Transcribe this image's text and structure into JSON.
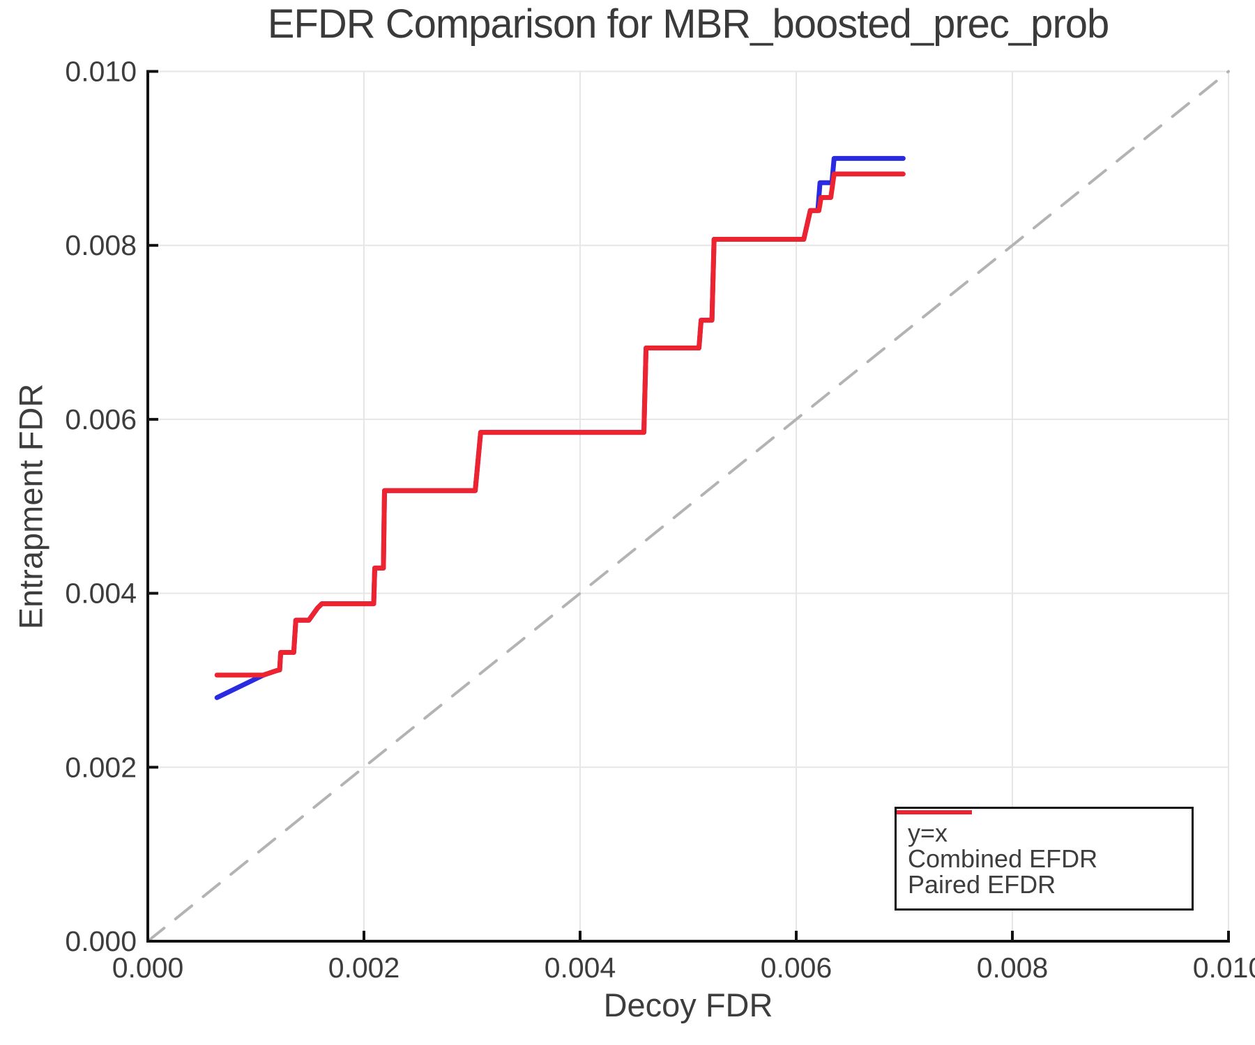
{
  "chart_data": {
    "type": "line",
    "title": "EFDR Comparison for MBR_boosted_prec_prob",
    "xlabel": "Decoy FDR",
    "ylabel": "Entrapment FDR",
    "xlim": [
      0.0,
      0.01
    ],
    "ylim": [
      0.0,
      0.01
    ],
    "grid": true,
    "legend_position": "lower right",
    "colors": {
      "background": "#ffffff",
      "grid": "#e6e6e6",
      "spine": "#111111",
      "text": "#3d3d3d",
      "identity_line": "#b3b3b3",
      "combined": "#2a2ae0",
      "paired": "#ee2330"
    },
    "x_ticks": {
      "values": [
        0.0,
        0.002,
        0.004,
        0.006,
        0.008,
        0.01
      ],
      "labels": [
        "0.000",
        "0.002",
        "0.004",
        "0.006",
        "0.008",
        "0.010"
      ]
    },
    "y_ticks": {
      "values": [
        0.0,
        0.002,
        0.004,
        0.006,
        0.008,
        0.01
      ],
      "labels": [
        "0.000",
        "0.002",
        "0.004",
        "0.006",
        "0.008",
        "0.010"
      ]
    },
    "series": [
      {
        "name": "y=x",
        "color": "#b3b3b3",
        "dash": true,
        "width": 4,
        "points": [
          [
            0.0,
            0.0
          ],
          [
            0.01,
            0.01
          ]
        ]
      },
      {
        "name": "Combined EFDR",
        "color": "#2a2ae0",
        "dash": false,
        "width": 7,
        "points": [
          [
            0.00064,
            0.0028
          ],
          [
            0.00107,
            0.00306
          ],
          [
            0.00119,
            0.00311
          ],
          [
            0.00122,
            0.00312
          ],
          [
            0.00123,
            0.00332
          ],
          [
            0.00135,
            0.00332
          ],
          [
            0.00137,
            0.00369
          ],
          [
            0.00149,
            0.00369
          ],
          [
            0.00157,
            0.00383
          ],
          [
            0.00161,
            0.00388
          ],
          [
            0.00209,
            0.00388
          ],
          [
            0.0021,
            0.00429
          ],
          [
            0.00218,
            0.00429
          ],
          [
            0.00219,
            0.00518
          ],
          [
            0.00303,
            0.00518
          ],
          [
            0.00308,
            0.00585
          ],
          [
            0.00459,
            0.00585
          ],
          [
            0.00461,
            0.00682
          ],
          [
            0.0051,
            0.00682
          ],
          [
            0.00512,
            0.00714
          ],
          [
            0.00522,
            0.00714
          ],
          [
            0.00524,
            0.00807
          ],
          [
            0.00607,
            0.00807
          ],
          [
            0.00613,
            0.0084
          ],
          [
            0.0062,
            0.0084
          ],
          [
            0.00622,
            0.00872
          ],
          [
            0.00633,
            0.00872
          ],
          [
            0.00635,
            0.009
          ],
          [
            0.00699,
            0.009
          ]
        ]
      },
      {
        "name": "Paired EFDR",
        "color": "#ee2330",
        "dash": false,
        "width": 7,
        "points": [
          [
            0.00064,
            0.00306
          ],
          [
            0.00107,
            0.00306
          ],
          [
            0.00119,
            0.00311
          ],
          [
            0.00122,
            0.00312
          ],
          [
            0.00123,
            0.00332
          ],
          [
            0.00135,
            0.00332
          ],
          [
            0.00137,
            0.00369
          ],
          [
            0.00149,
            0.00369
          ],
          [
            0.00157,
            0.00383
          ],
          [
            0.00161,
            0.00388
          ],
          [
            0.00209,
            0.00388
          ],
          [
            0.0021,
            0.00429
          ],
          [
            0.00218,
            0.00429
          ],
          [
            0.00219,
            0.00518
          ],
          [
            0.00303,
            0.00518
          ],
          [
            0.00308,
            0.00585
          ],
          [
            0.00459,
            0.00585
          ],
          [
            0.00461,
            0.00682
          ],
          [
            0.0051,
            0.00682
          ],
          [
            0.00512,
            0.00714
          ],
          [
            0.00522,
            0.00714
          ],
          [
            0.00524,
            0.00807
          ],
          [
            0.00607,
            0.00807
          ],
          [
            0.00613,
            0.0084
          ],
          [
            0.00621,
            0.0084
          ],
          [
            0.00623,
            0.00855
          ],
          [
            0.00632,
            0.00855
          ],
          [
            0.00635,
            0.00882
          ],
          [
            0.00699,
            0.00882
          ]
        ]
      }
    ]
  }
}
